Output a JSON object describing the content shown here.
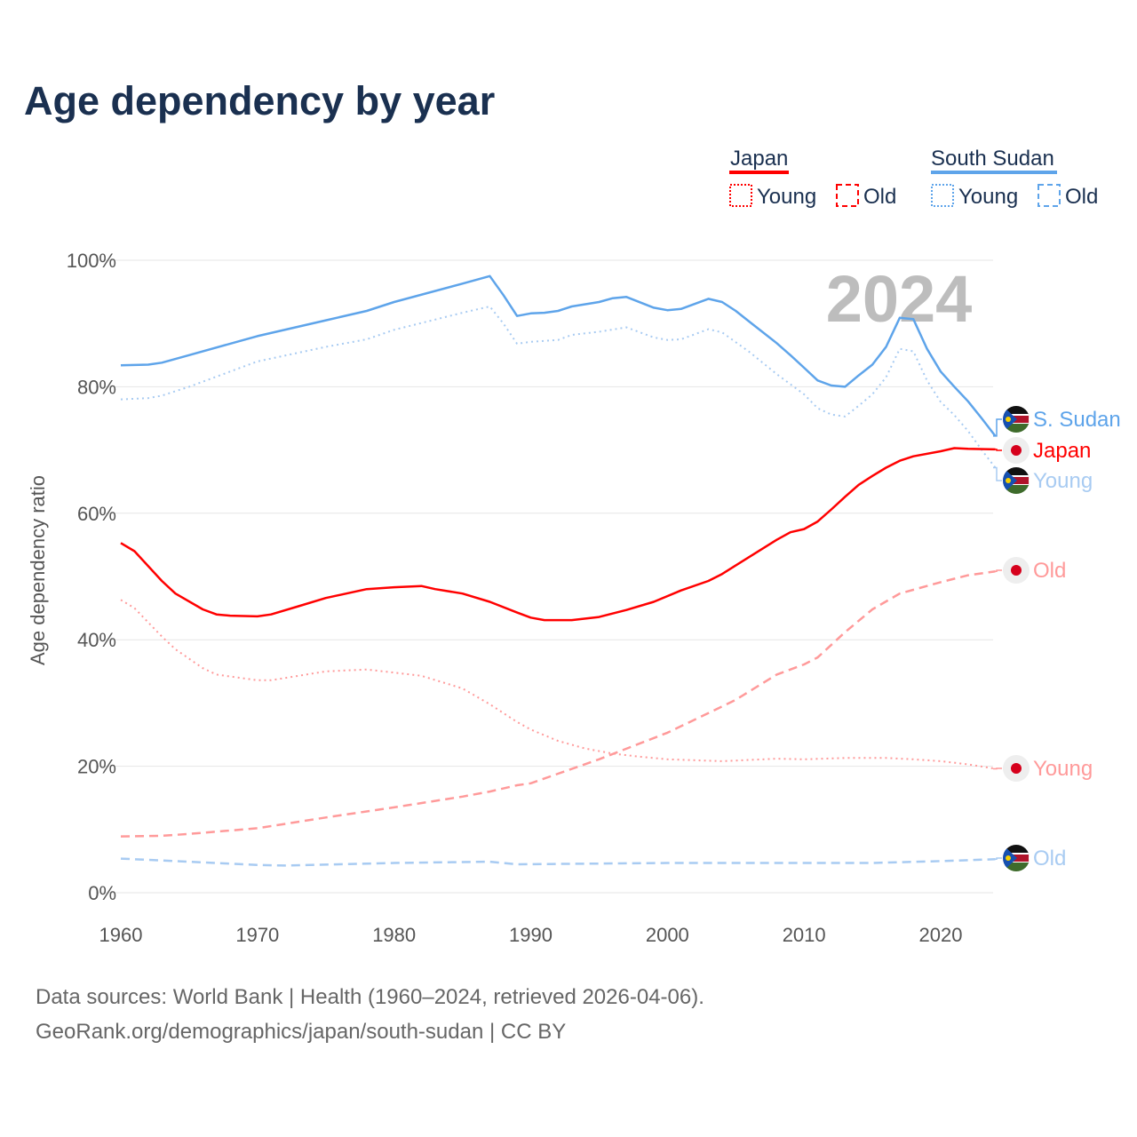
{
  "title": "Age dependency by year",
  "legend": {
    "japan": {
      "label": "Japan",
      "young": "Young",
      "old": "Old"
    },
    "south_sudan": {
      "label": "South Sudan",
      "young": "Young",
      "old": "Old"
    }
  },
  "year_watermark": "2024",
  "end_labels": {
    "ss_total": "S. Sudan",
    "jp_total": "Japan",
    "ss_young": "Young",
    "jp_old": "Old",
    "jp_young": "Young",
    "ss_old": "Old"
  },
  "colors": {
    "japan": "#ff0000",
    "japan_light": "#ff9a9a",
    "south_sudan": "#5ea4ea",
    "south_sudan_light": "#a8cbf2"
  },
  "footer": {
    "line1": "Data sources: World Bank | Health (1960–2024, retrieved 2026-04-06).",
    "line2": "GeoRank.org/demographics/japan/south-sudan | CC BY"
  },
  "chart_data": {
    "type": "line",
    "title": "Age dependency by year",
    "xlabel": "",
    "ylabel": "Age dependency ratio",
    "xlim": [
      1960,
      2024
    ],
    "ylim": [
      0,
      100
    ],
    "xticks": [
      "1960",
      "1970",
      "1980",
      "1990",
      "2000",
      "2010",
      "2020"
    ],
    "yticks": [
      "0%",
      "20%",
      "40%",
      "60%",
      "80%",
      "100%"
    ],
    "grid": true,
    "series": [
      {
        "name": "South Sudan",
        "key": "ss_total",
        "color": "#5ea4ea",
        "dash": "",
        "points": [
          [
            1960,
            83.4
          ],
          [
            1962,
            83.5
          ],
          [
            1963,
            83.8
          ],
          [
            1965,
            85
          ],
          [
            1970,
            88
          ],
          [
            1975,
            90.5
          ],
          [
            1978,
            92
          ],
          [
            1980,
            93.4
          ],
          [
            1985,
            96.3
          ],
          [
            1987,
            97.5
          ],
          [
            1988,
            94.5
          ],
          [
            1989,
            91.2
          ],
          [
            1990,
            91.6
          ],
          [
            1991,
            91.7
          ],
          [
            1992,
            92
          ],
          [
            1993,
            92.7
          ],
          [
            1995,
            93.4
          ],
          [
            1996,
            94
          ],
          [
            1997,
            94.2
          ],
          [
            1999,
            92.5
          ],
          [
            2000,
            92.1
          ],
          [
            2001,
            92.3
          ],
          [
            2003,
            93.9
          ],
          [
            2004,
            93.4
          ],
          [
            2005,
            92
          ],
          [
            2006,
            90.3
          ],
          [
            2008,
            86.9
          ],
          [
            2009,
            85
          ],
          [
            2010,
            83
          ],
          [
            2011,
            81
          ],
          [
            2012,
            80.2
          ],
          [
            2013,
            80
          ],
          [
            2014,
            81.8
          ],
          [
            2015,
            83.5
          ],
          [
            2016,
            86.3
          ],
          [
            2017,
            90.9
          ],
          [
            2018,
            90.7
          ],
          [
            2019,
            86
          ],
          [
            2020,
            82.4
          ],
          [
            2021,
            80
          ],
          [
            2022,
            77.7
          ],
          [
            2023,
            75
          ],
          [
            2024,
            72.2
          ]
        ]
      },
      {
        "name": "South Sudan Young",
        "key": "ss_young",
        "color": "#a8cbf2",
        "dash": "2,4",
        "points": [
          [
            1960,
            78
          ],
          [
            1962,
            78.2
          ],
          [
            1963,
            78.6
          ],
          [
            1965,
            80
          ],
          [
            1970,
            84
          ],
          [
            1975,
            86.3
          ],
          [
            1978,
            87.5
          ],
          [
            1980,
            89
          ],
          [
            1985,
            91.7
          ],
          [
            1987,
            92.7
          ],
          [
            1988,
            90
          ],
          [
            1989,
            86.8
          ],
          [
            1990,
            87.1
          ],
          [
            1992,
            87.4
          ],
          [
            1993,
            88.2
          ],
          [
            1995,
            88.7
          ],
          [
            1997,
            89.4
          ],
          [
            1999,
            87.8
          ],
          [
            2000,
            87.4
          ],
          [
            2001,
            87.5
          ],
          [
            2003,
            89.1
          ],
          [
            2004,
            88.6
          ],
          [
            2006,
            85.5
          ],
          [
            2008,
            82
          ],
          [
            2010,
            78.8
          ],
          [
            2011,
            76.6
          ],
          [
            2012,
            75.6
          ],
          [
            2013,
            75.3
          ],
          [
            2014,
            77
          ],
          [
            2015,
            78.8
          ],
          [
            2016,
            81.5
          ],
          [
            2017,
            86
          ],
          [
            2018,
            85.6
          ],
          [
            2019,
            81
          ],
          [
            2020,
            77.6
          ],
          [
            2021,
            75.5
          ],
          [
            2022,
            73
          ],
          [
            2023,
            70
          ],
          [
            2024,
            67.2
          ]
        ]
      },
      {
        "name": "South Sudan Old",
        "key": "ss_old",
        "color": "#a8cbf2",
        "dash": "10,6",
        "points": [
          [
            1960,
            5.4
          ],
          [
            1965,
            4.9
          ],
          [
            1970,
            4.4
          ],
          [
            1972,
            4.3
          ],
          [
            1980,
            4.7
          ],
          [
            1987,
            4.9
          ],
          [
            1989,
            4.5
          ],
          [
            2000,
            4.7
          ],
          [
            2010,
            4.7
          ],
          [
            2015,
            4.7
          ],
          [
            2020,
            5
          ],
          [
            2024,
            5.3
          ]
        ]
      },
      {
        "name": "Japan",
        "key": "jp_total",
        "color": "#ff0000",
        "dash": "",
        "points": [
          [
            1960,
            55.3
          ],
          [
            1961,
            54
          ],
          [
            1963,
            49.3
          ],
          [
            1964,
            47.3
          ],
          [
            1966,
            44.8
          ],
          [
            1967,
            44
          ],
          [
            1968,
            43.8
          ],
          [
            1970,
            43.7
          ],
          [
            1971,
            44
          ],
          [
            1973,
            45.3
          ],
          [
            1975,
            46.6
          ],
          [
            1978,
            48
          ],
          [
            1980,
            48.3
          ],
          [
            1982,
            48.5
          ],
          [
            1983,
            48
          ],
          [
            1985,
            47.3
          ],
          [
            1987,
            46
          ],
          [
            1989,
            44.3
          ],
          [
            1990,
            43.5
          ],
          [
            1991,
            43.1
          ],
          [
            1993,
            43.1
          ],
          [
            1995,
            43.6
          ],
          [
            1997,
            44.7
          ],
          [
            1999,
            46
          ],
          [
            2001,
            47.8
          ],
          [
            2003,
            49.3
          ],
          [
            2004,
            50.4
          ],
          [
            2006,
            53.1
          ],
          [
            2008,
            55.8
          ],
          [
            2009,
            57
          ],
          [
            2010,
            57.5
          ],
          [
            2011,
            58.7
          ],
          [
            2012,
            60.6
          ],
          [
            2013,
            62.6
          ],
          [
            2014,
            64.5
          ],
          [
            2015,
            65.9
          ],
          [
            2016,
            67.2
          ],
          [
            2017,
            68.3
          ],
          [
            2018,
            69
          ],
          [
            2020,
            69.8
          ],
          [
            2021,
            70.3
          ],
          [
            2022,
            70.2
          ],
          [
            2024,
            70.1
          ]
        ]
      },
      {
        "name": "Japan Young",
        "key": "jp_young",
        "color": "#ff9a9a",
        "dash": "2,4",
        "points": [
          [
            1960,
            46.3
          ],
          [
            1961,
            45
          ],
          [
            1963,
            40.5
          ],
          [
            1964,
            38.5
          ],
          [
            1966,
            35.5
          ],
          [
            1967,
            34.5
          ],
          [
            1970,
            33.6
          ],
          [
            1971,
            33.6
          ],
          [
            1973,
            34.3
          ],
          [
            1975,
            35
          ],
          [
            1978,
            35.3
          ],
          [
            1980,
            34.8
          ],
          [
            1982,
            34.3
          ],
          [
            1985,
            32.3
          ],
          [
            1987,
            29.8
          ],
          [
            1989,
            27
          ],
          [
            1990,
            25.8
          ],
          [
            1992,
            24
          ],
          [
            1994,
            22.8
          ],
          [
            1996,
            22
          ],
          [
            1998,
            21.5
          ],
          [
            2000,
            21.1
          ],
          [
            2004,
            20.8
          ],
          [
            2008,
            21.2
          ],
          [
            2010,
            21.1
          ],
          [
            2013,
            21.3
          ],
          [
            2016,
            21.3
          ],
          [
            2018,
            21.1
          ],
          [
            2020,
            20.8
          ],
          [
            2022,
            20.3
          ],
          [
            2024,
            19.6
          ]
        ]
      },
      {
        "name": "Japan Old",
        "key": "jp_old",
        "color": "#ff9a9a",
        "dash": "10,6",
        "points": [
          [
            1960,
            8.9
          ],
          [
            1963,
            9
          ],
          [
            1965,
            9.3
          ],
          [
            1970,
            10.2
          ],
          [
            1975,
            11.9
          ],
          [
            1980,
            13.5
          ],
          [
            1985,
            15.2
          ],
          [
            1987,
            16
          ],
          [
            1989,
            17
          ],
          [
            1990,
            17.3
          ],
          [
            1995,
            21.1
          ],
          [
            2000,
            25.3
          ],
          [
            2003,
            28.4
          ],
          [
            2005,
            30.5
          ],
          [
            2008,
            34.5
          ],
          [
            2010,
            36.1
          ],
          [
            2011,
            37.2
          ],
          [
            2013,
            41.2
          ],
          [
            2015,
            44.8
          ],
          [
            2017,
            47.3
          ],
          [
            2020,
            49.1
          ],
          [
            2022,
            50.2
          ],
          [
            2024,
            50.8
          ]
        ]
      }
    ]
  }
}
